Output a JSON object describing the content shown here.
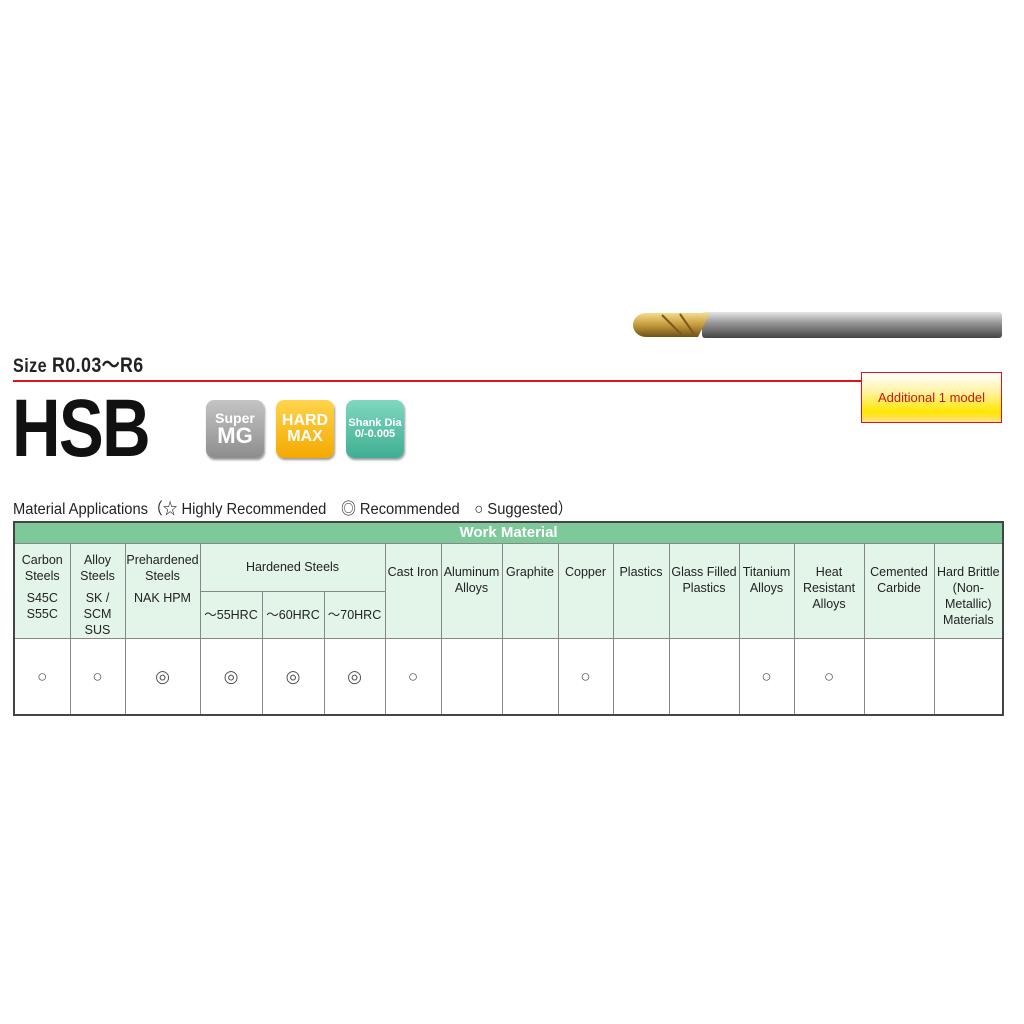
{
  "size_label": "Size",
  "size_value": "R0.03～R6",
  "additional": "Additional 1 model",
  "product": "HSB",
  "badges": [
    {
      "line1": "Super",
      "line2": "MG",
      "color": "#a8a8a8"
    },
    {
      "line1": "HARD",
      "line2": "MAX",
      "color": "#f8b800"
    },
    {
      "line1": "Shank Dia",
      "line2": "0/-0.005",
      "color": "#55c1a5"
    }
  ],
  "legend": "Material Applications（☆ Highly Recommended　◎ Recommended　○ Suggested）",
  "table": {
    "group_header": "Work Material",
    "columns": [
      {
        "name": "Carbon Steels",
        "sub": "S45C S55C",
        "value": "○"
      },
      {
        "name": "Alloy Steels",
        "sub": "SK / SCM SUS",
        "value": "○"
      },
      {
        "name": "Prehardened Steels",
        "sub": "NAK HPM",
        "value": "◎"
      },
      {
        "name": "Cast Iron",
        "value": "○"
      },
      {
        "name": "Aluminum Alloys",
        "value": ""
      },
      {
        "name": "Graphite",
        "value": ""
      },
      {
        "name": "Copper",
        "value": "○"
      },
      {
        "name": "Plastics",
        "value": ""
      },
      {
        "name": "Glass Filled Plastics",
        "value": ""
      },
      {
        "name": "Titanium Alloys",
        "value": "○"
      },
      {
        "name": "Heat Resistant Alloys",
        "value": "○"
      },
      {
        "name": "Cemented Carbide",
        "value": ""
      },
      {
        "name": "Hard Brittle (Non-Metallic) Materials",
        "value": ""
      }
    ],
    "hardened": {
      "name": "Hardened Steels",
      "subs": [
        {
          "label": "～55HRC",
          "value": "◎"
        },
        {
          "label": "～60HRC",
          "value": "◎"
        },
        {
          "label": "～70HRC",
          "value": "◎"
        }
      ]
    }
  },
  "colors": {
    "accent_red": "#d7161e",
    "table_header": "#7ec99a",
    "table_sub": "#e3f4e9"
  }
}
